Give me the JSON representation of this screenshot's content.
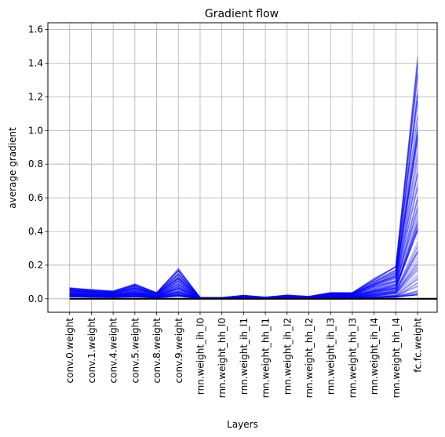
{
  "chart_data": {
    "type": "line",
    "title": "Gradient flow",
    "xlabel": "Layers",
    "ylabel": "average gradient",
    "categories": [
      "conv.0.weight",
      "conv.1.weight",
      "conv.4.weight",
      "conv.5.weight",
      "conv.8.weight",
      "conv.9.weight",
      "rnn.weight_ih_l0",
      "rnn.weight_hh_l0",
      "rnn.weight_ih_l1",
      "rnn.weight_hh_l1",
      "rnn.weight_ih_l2",
      "rnn.weight_hh_l2",
      "rnn.weight_ih_l3",
      "rnn.weight_hh_l3",
      "rnn.weight_ih_l4",
      "rnn.weight_hh_l4",
      "fc.fc.weight"
    ],
    "ylim": [
      -0.08,
      1.64
    ],
    "xlim": [
      -1,
      16.9
    ],
    "yticks": [
      0.0,
      0.2,
      0.4,
      0.6,
      0.8,
      1.0,
      1.2,
      1.4,
      1.6
    ],
    "ytick_labels": [
      "0.0",
      "0.2",
      "0.4",
      "0.6",
      "0.8",
      "1.0",
      "1.2",
      "1.4",
      "1.6"
    ],
    "grid": true,
    "line_color": "#0000ff",
    "zero_line_color": "#000000",
    "envelope": {
      "low": [
        0.012,
        0.01,
        0.008,
        0.012,
        0.006,
        0.015,
        0.001,
        0.001,
        0.002,
        0.001,
        0.002,
        0.001,
        0.004,
        0.004,
        0.006,
        0.01,
        0.025
      ],
      "high": [
        0.07,
        0.06,
        0.05,
        0.095,
        0.04,
        0.195,
        0.008,
        0.007,
        0.022,
        0.01,
        0.024,
        0.015,
        0.04,
        0.04,
        0.13,
        0.21,
        1.56
      ]
    },
    "series_count": 90
  }
}
